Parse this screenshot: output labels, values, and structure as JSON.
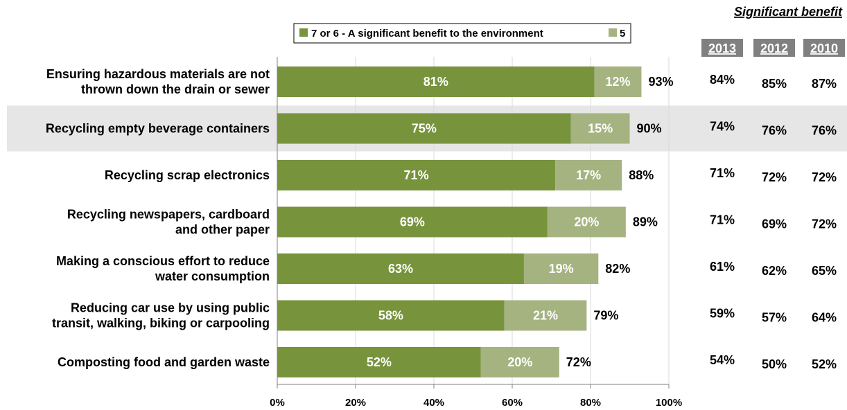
{
  "chart_data": {
    "type": "bar",
    "stacked": true,
    "orientation": "horizontal",
    "categories": [
      [
        "Ensuring hazardous materials are not",
        "thrown down the drain or sewer"
      ],
      [
        "Recycling empty beverage containers"
      ],
      [
        "Recycling scrap electronics"
      ],
      [
        "Recycling newspapers, cardboard",
        "and other paper"
      ],
      [
        "Making a conscious effort to reduce",
        "water consumption"
      ],
      [
        "Reducing car use by using public",
        "transit, walking, biking or carpooling"
      ],
      [
        "Composting food and garden waste"
      ]
    ],
    "series": [
      {
        "name": "7 or 6 - A significant benefit to the environment",
        "color": "#77933c",
        "values": [
          81,
          75,
          71,
          69,
          63,
          58,
          52
        ],
        "labels": [
          "81%",
          "75%",
          "71%",
          "69%",
          "63%",
          "58%",
          "52%"
        ]
      },
      {
        "name": "5",
        "color": "#a5b381",
        "values": [
          12,
          15,
          17,
          20,
          19,
          21,
          20
        ],
        "labels": [
          "12%",
          "15%",
          "17%",
          "20%",
          "19%",
          "21%",
          "20%"
        ]
      }
    ],
    "totals": [
      "93%",
      "90%",
      "88%",
      "89%",
      "82%",
      "79%",
      "72%"
    ],
    "xlim": [
      0,
      100
    ],
    "xticks": [
      "0%",
      "20%",
      "40%",
      "60%",
      "80%",
      "100%"
    ],
    "grid": true,
    "legend_position": "top",
    "highlighted_row": 1,
    "highlight_color": "#e6e6e6",
    "table": {
      "title": "Significant benefit",
      "header_color": "#808080",
      "columns": [
        "2013",
        "2012",
        "2010"
      ],
      "rows": [
        [
          "84%",
          "85%",
          "87%"
        ],
        [
          "74%",
          "76%",
          "76%"
        ],
        [
          "71%",
          "72%",
          "72%"
        ],
        [
          "71%",
          "69%",
          "72%"
        ],
        [
          "61%",
          "62%",
          "65%"
        ],
        [
          "59%",
          "57%",
          "64%"
        ],
        [
          "54%",
          "50%",
          "52%"
        ]
      ]
    }
  }
}
